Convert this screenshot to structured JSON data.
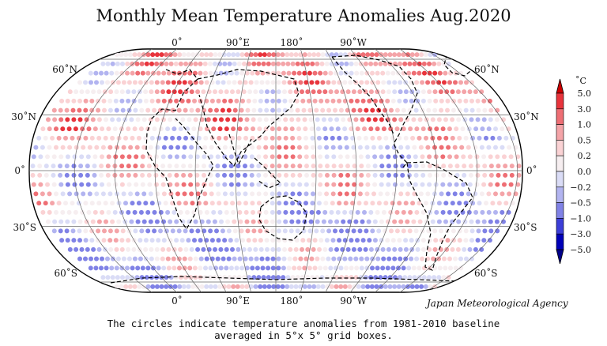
{
  "title": "Monthly Mean Temperature Anomalies Aug.2020",
  "longitude_labels_top": [
    "0˚",
    "90˚E",
    "180˚",
    "90˚W"
  ],
  "longitude_labels_bottom": [
    "0˚",
    "90˚E",
    "180˚",
    "90˚W"
  ],
  "latitude_labels": [
    "60˚N",
    "30˚N",
    "0˚",
    "30˚S",
    "60˚S"
  ],
  "colorbar": {
    "unit": "˚C",
    "ticks": [
      "5.0",
      "3.0",
      "1.0",
      "0.5",
      "0.2",
      "0.0",
      "−0.2",
      "−0.5",
      "−1.0",
      "−3.0",
      "−5.0"
    ],
    "colors": [
      "#cc0000",
      "#e8343c",
      "#ee6e74",
      "#f4a4a8",
      "#fad2d4",
      "#f6eef0",
      "#dadcf6",
      "#b2b4f0",
      "#8082e6",
      "#3c3ed8",
      "#0000b8",
      "#00008a"
    ]
  },
  "agency": "Japan Meteorological Agency",
  "caption": {
    "line1": "The circles indicate temperature anomalies from 1981-2010 baseline",
    "line2": "averaged in 5°x 5° grid boxes."
  }
}
